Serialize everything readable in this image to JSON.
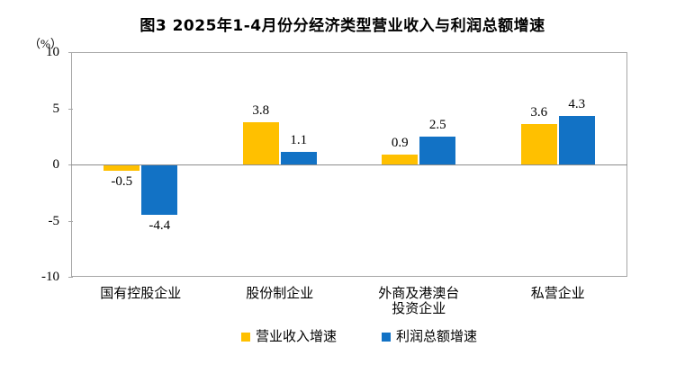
{
  "title": "图3 2025年1-4月份分经济类型营业收入与利润总额增速",
  "unit_label": "（%）",
  "chart_data": {
    "type": "bar",
    "categories": [
      "国有控股企业",
      "股份制企业",
      "外商及港澳台\n投资企业",
      "私营企业"
    ],
    "series": [
      {
        "name": "营业收入增速",
        "color": "#FFC000",
        "values": [
          -0.5,
          3.8,
          0.9,
          3.6
        ]
      },
      {
        "name": "利润总额增速",
        "color": "#1272C5",
        "values": [
          -4.4,
          1.1,
          2.5,
          4.3
        ]
      }
    ],
    "ylim": [
      -10,
      10
    ],
    "yticks": [
      10,
      5,
      0,
      -5,
      -10
    ],
    "grid": false,
    "legend_position": "bottom",
    "axis_color": "#A6A6A6",
    "zero_line_color": "#8C8C8C",
    "text_color": "#000000"
  }
}
